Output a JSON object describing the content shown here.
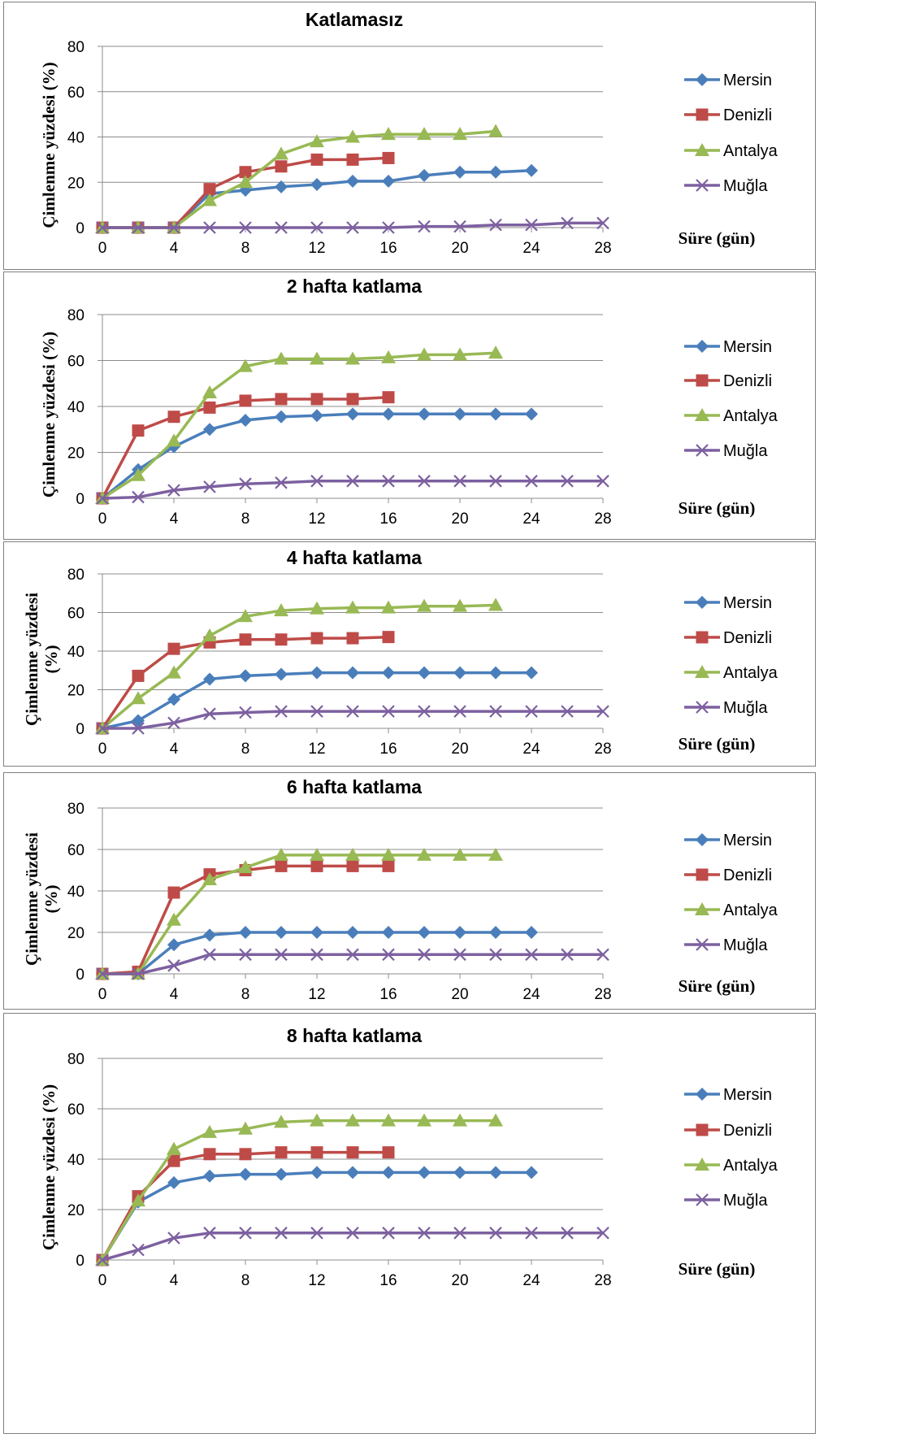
{
  "colors": {
    "Mersin": "#4a7ebb",
    "Denizli": "#be4b48",
    "Antalya": "#98b954",
    "Muğla": "#7d60a0"
  },
  "markers": {
    "Mersin": "diamond",
    "Denizli": "square",
    "Antalya": "triangle",
    "Muğla": "x"
  },
  "chart_data": [
    {
      "type": "line",
      "title": "Katlamasız",
      "ylabel": [
        "Çimlenme yüzdesi (%)"
      ],
      "xlabel": "Süre (gün)",
      "xticks": [
        0,
        4,
        8,
        12,
        16,
        20,
        24,
        28
      ],
      "yticks": [
        0,
        20,
        40,
        60,
        80
      ],
      "xlim": [
        0,
        28
      ],
      "ylim": [
        0,
        80
      ],
      "grid": true,
      "legend": "right",
      "series": [
        {
          "name": "Mersin",
          "x": [
            0,
            2,
            4,
            6,
            8,
            10,
            12,
            14,
            16,
            18,
            20,
            22,
            24
          ],
          "y": [
            0,
            0,
            0,
            15,
            16.5,
            18,
            19,
            20.5,
            20.5,
            23,
            24.5,
            24.5,
            25.2
          ]
        },
        {
          "name": "Denizli",
          "x": [
            0,
            2,
            4,
            6,
            8,
            10,
            12,
            14,
            16
          ],
          "y": [
            0,
            0,
            0,
            17,
            24.5,
            27,
            30,
            30,
            30.7
          ]
        },
        {
          "name": "Antalya",
          "x": [
            0,
            2,
            4,
            6,
            8,
            10,
            12,
            14,
            16,
            18,
            20,
            22
          ],
          "y": [
            0,
            0,
            0,
            12,
            20,
            32.5,
            38,
            40,
            41.2,
            41.2,
            41.2,
            42.5
          ]
        },
        {
          "name": "Muğla",
          "x": [
            0,
            2,
            4,
            6,
            8,
            10,
            12,
            14,
            16,
            18,
            20,
            22,
            24,
            26,
            28
          ],
          "y": [
            0,
            0,
            0,
            0,
            0,
            0,
            0,
            0,
            0,
            0.5,
            0.5,
            1.2,
            1.2,
            2,
            2
          ]
        }
      ]
    },
    {
      "type": "line",
      "title": "2 hafta katlama",
      "ylabel": [
        "Çimlenme yüzdesi (%)"
      ],
      "xlabel": "Süre (gün)",
      "xticks": [
        0,
        4,
        8,
        12,
        16,
        20,
        24,
        28
      ],
      "yticks": [
        0,
        20,
        40,
        60,
        80
      ],
      "xlim": [
        0,
        28
      ],
      "ylim": [
        0,
        80
      ],
      "grid": true,
      "legend": "right",
      "series": [
        {
          "name": "Mersin",
          "x": [
            0,
            2,
            4,
            6,
            8,
            10,
            12,
            14,
            16,
            18,
            20,
            22,
            24
          ],
          "y": [
            0,
            12.5,
            22.5,
            30,
            34,
            35.5,
            36,
            36.7,
            36.7,
            36.7,
            36.7,
            36.7,
            36.7
          ]
        },
        {
          "name": "Denizli",
          "x": [
            0,
            2,
            4,
            6,
            8,
            10,
            12,
            14,
            16
          ],
          "y": [
            0,
            29.5,
            35.5,
            39.5,
            42.5,
            43.2,
            43.2,
            43.2,
            44
          ]
        },
        {
          "name": "Antalya",
          "x": [
            0,
            2,
            4,
            6,
            8,
            10,
            12,
            14,
            16,
            18,
            20,
            22
          ],
          "y": [
            0,
            10,
            25,
            46,
            57.5,
            60.7,
            60.7,
            60.7,
            61.3,
            62.5,
            62.5,
            63.3
          ]
        },
        {
          "name": "Muğla",
          "x": [
            0,
            2,
            4,
            6,
            8,
            10,
            12,
            14,
            16,
            18,
            20,
            22,
            24,
            26,
            28
          ],
          "y": [
            0,
            0.5,
            3.5,
            5,
            6.3,
            6.8,
            7.5,
            7.5,
            7.5,
            7.5,
            7.5,
            7.5,
            7.5,
            7.5,
            7.5
          ]
        }
      ]
    },
    {
      "type": "line",
      "title": "4 hafta katlama",
      "ylabel": [
        "Çimlenme yüzdesi",
        "(%)"
      ],
      "xlabel": "Süre (gün)",
      "xticks": [
        0,
        4,
        8,
        12,
        16,
        20,
        24,
        28
      ],
      "yticks": [
        0,
        20,
        40,
        60,
        80
      ],
      "xlim": [
        0,
        28
      ],
      "ylim": [
        0,
        80
      ],
      "grid": true,
      "legend": "right",
      "series": [
        {
          "name": "Mersin",
          "x": [
            0,
            2,
            4,
            6,
            8,
            10,
            12,
            14,
            16,
            18,
            20,
            22,
            24
          ],
          "y": [
            0,
            4,
            15,
            25.5,
            27.2,
            28,
            28.8,
            28.8,
            28.8,
            28.8,
            28.8,
            28.8,
            28.8
          ]
        },
        {
          "name": "Denizli",
          "x": [
            0,
            2,
            4,
            6,
            8,
            10,
            12,
            14,
            16
          ],
          "y": [
            0,
            27.2,
            41.2,
            44.5,
            46,
            46,
            46.7,
            46.7,
            47.3
          ]
        },
        {
          "name": "Antalya",
          "x": [
            0,
            2,
            4,
            6,
            8,
            10,
            12,
            14,
            16,
            18,
            20,
            22
          ],
          "y": [
            0,
            15.5,
            28.8,
            48,
            58,
            61,
            62,
            62.5,
            62.5,
            63.3,
            63.3,
            63.8
          ]
        },
        {
          "name": "Muğla",
          "x": [
            0,
            2,
            4,
            6,
            8,
            10,
            12,
            14,
            16,
            18,
            20,
            22,
            24,
            26,
            28
          ],
          "y": [
            0,
            0,
            2.8,
            7.5,
            8.2,
            8.8,
            8.8,
            8.8,
            8.8,
            8.8,
            8.8,
            8.8,
            8.8,
            8.8,
            8.8
          ]
        }
      ]
    },
    {
      "type": "line",
      "title": "6 hafta katlama",
      "ylabel": [
        "Çimlenme yüzdesi",
        "(%)"
      ],
      "xlabel": "Süre (gün)",
      "xticks": [
        0,
        4,
        8,
        12,
        16,
        20,
        24,
        28
      ],
      "yticks": [
        0,
        20,
        40,
        60,
        80
      ],
      "xlim": [
        0,
        28
      ],
      "ylim": [
        0,
        80
      ],
      "grid": true,
      "legend": "right",
      "series": [
        {
          "name": "Mersin",
          "x": [
            0,
            2,
            4,
            6,
            8,
            10,
            12,
            14,
            16,
            18,
            20,
            22,
            24
          ],
          "y": [
            0,
            0,
            14,
            18.7,
            20,
            20,
            20,
            20,
            20,
            20,
            20,
            20,
            20
          ]
        },
        {
          "name": "Denizli",
          "x": [
            0,
            2,
            4,
            6,
            8,
            10,
            12,
            14,
            16
          ],
          "y": [
            0,
            1,
            39.2,
            48,
            50,
            52,
            52,
            52,
            52
          ]
        },
        {
          "name": "Antalya",
          "x": [
            0,
            2,
            4,
            6,
            8,
            10,
            12,
            14,
            16,
            18,
            20,
            22
          ],
          "y": [
            0,
            0,
            26,
            45.5,
            51.3,
            57.3,
            57.3,
            57.3,
            57.3,
            57.3,
            57.3,
            57.3
          ]
        },
        {
          "name": "Muğla",
          "x": [
            0,
            2,
            4,
            6,
            8,
            10,
            12,
            14,
            16,
            18,
            20,
            22,
            24,
            26,
            28
          ],
          "y": [
            0,
            0,
            4,
            9.3,
            9.3,
            9.3,
            9.3,
            9.3,
            9.3,
            9.3,
            9.3,
            9.3,
            9.3,
            9.3,
            9.3
          ]
        }
      ]
    },
    {
      "type": "line",
      "title": "8 hafta katlama",
      "ylabel": [
        "Çimlenme yüzdesi (%)"
      ],
      "xlabel": "Süre (gün)",
      "xticks": [
        0,
        4,
        8,
        12,
        16,
        20,
        24,
        28
      ],
      "yticks": [
        0,
        20,
        40,
        60,
        80
      ],
      "xlim": [
        0,
        28
      ],
      "ylim": [
        0,
        80
      ],
      "grid": true,
      "legend": "right",
      "series": [
        {
          "name": "Mersin",
          "x": [
            0,
            2,
            4,
            6,
            8,
            10,
            12,
            14,
            16,
            18,
            20,
            22,
            24
          ],
          "y": [
            0,
            23,
            30.7,
            33.3,
            34,
            34,
            34.7,
            34.7,
            34.7,
            34.7,
            34.7,
            34.7,
            34.7
          ]
        },
        {
          "name": "Denizli",
          "x": [
            0,
            2,
            4,
            6,
            8,
            10,
            12,
            14,
            16
          ],
          "y": [
            0,
            25.3,
            39.3,
            42,
            42,
            42.7,
            42.7,
            42.7,
            42.7
          ]
        },
        {
          "name": "Antalya",
          "x": [
            0,
            2,
            4,
            6,
            8,
            10,
            12,
            14,
            16,
            18,
            20,
            22
          ],
          "y": [
            0,
            23.5,
            44,
            50.7,
            52,
            54.7,
            55.3,
            55.3,
            55.3,
            55.3,
            55.3,
            55.3
          ]
        },
        {
          "name": "Muğla",
          "x": [
            0,
            2,
            4,
            6,
            8,
            10,
            12,
            14,
            16,
            18,
            20,
            22,
            24,
            26,
            28
          ],
          "y": [
            0,
            4,
            8.7,
            10.7,
            10.7,
            10.7,
            10.7,
            10.7,
            10.7,
            10.7,
            10.7,
            10.7,
            10.7,
            10.7,
            10.7
          ]
        }
      ]
    }
  ]
}
